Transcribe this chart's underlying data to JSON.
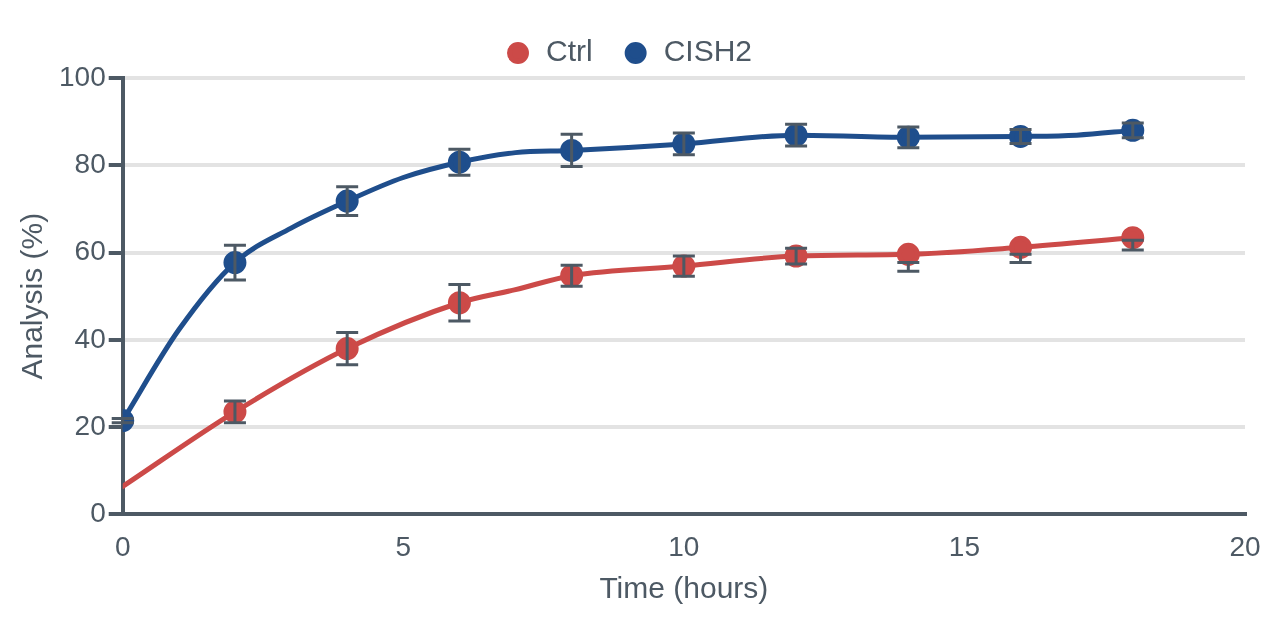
{
  "chart_data": {
    "type": "line",
    "xlabel": "Time (hours)",
    "ylabel": "Analysis (%)",
    "xlim": [
      0,
      20
    ],
    "xticks": [
      0,
      5,
      10,
      15,
      20
    ],
    "ylim": [
      0,
      100
    ],
    "yticks": [
      0,
      20,
      40,
      60,
      80,
      100
    ],
    "grid": "y",
    "legend": "top",
    "marker": "circle",
    "line_style": "solid",
    "series": [
      {
        "name": "Ctrl",
        "color": "#cc4a48",
        "x": [
          0,
          2,
          4,
          6,
          7,
          8,
          10,
          12,
          14,
          16,
          18
        ],
        "values": [
          6.4,
          23.5,
          38.0,
          48.5,
          51.5,
          54.7,
          56.9,
          59.2,
          59.6,
          61.2,
          63.4
        ],
        "errors": [
          null,
          2.5,
          3.7,
          4.2,
          null,
          2.4,
          2.3,
          1.8,
          [
            55.7,
            57.7
          ],
          [
            57.7,
            59.6
          ],
          [
            60.6,
            62.8
          ]
        ]
      },
      {
        "name": "CISH2",
        "color": "#1f4e8c",
        "x": [
          0,
          1,
          2,
          3,
          4,
          5,
          6,
          7,
          8,
          10,
          12,
          14,
          16,
          17,
          18
        ],
        "values": [
          21.5,
          42.3,
          57.7,
          65.6,
          71.8,
          77.2,
          80.7,
          82.9,
          83.4,
          84.9,
          86.9,
          86.4,
          86.6,
          86.9,
          88.0
        ],
        "errors": [
          0.5,
          null,
          4.0,
          null,
          3.3,
          null,
          3.0,
          null,
          3.7,
          2.5,
          2.5,
          2.4,
          1.6,
          null,
          1.7
        ]
      }
    ]
  }
}
